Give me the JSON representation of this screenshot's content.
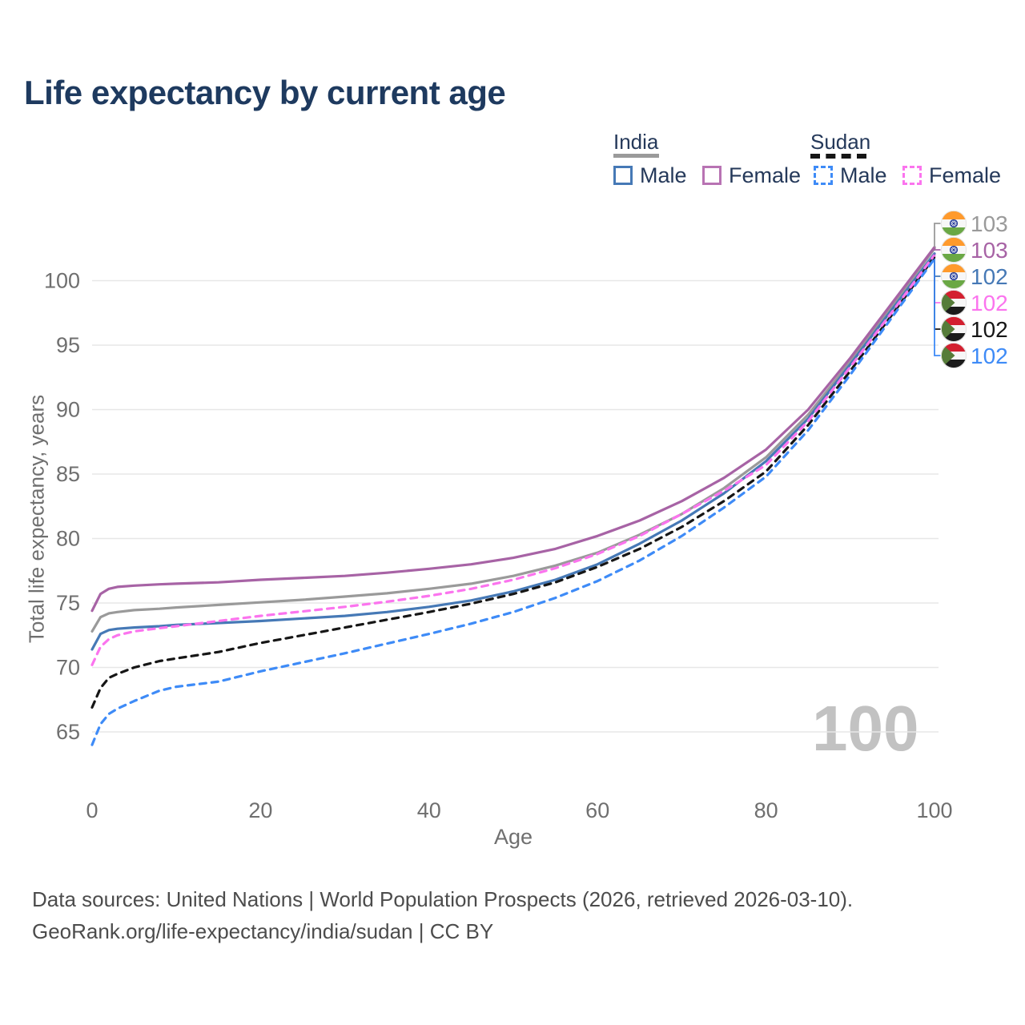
{
  "title": "Life expectancy by current age",
  "legend": {
    "india": {
      "label": "India",
      "male": "Male",
      "female": "Female"
    },
    "sudan": {
      "label": "Sudan",
      "male": "Male",
      "female": "Female"
    }
  },
  "watermark": "100",
  "source_line1": "Data sources: United Nations | World Population Prospects (2026, retrieved 2026-03-10).",
  "source_line2": "GeoRank.org/life-expectancy/india/sudan | CC BY",
  "colors": {
    "india_total": "#9a9a9a",
    "india_female": "#a763a5",
    "india_male": "#4679b6",
    "sudan_female": "#fb74ee",
    "sudan_total": "#161616",
    "sudan_male": "#3e8bf7",
    "grid": "#e7e7e7",
    "axis_text": "#6f6f6f",
    "title_text": "#1e3a5f"
  },
  "chart_data": {
    "type": "line",
    "title": "Life expectancy by current age",
    "xlabel": "Age",
    "ylabel": "Total life expectancy, years",
    "x_ticks": [
      0,
      20,
      40,
      60,
      80,
      100
    ],
    "y_ticks": [
      65,
      70,
      75,
      80,
      85,
      90,
      95,
      100
    ],
    "xlim": [
      0,
      100
    ],
    "ylim": [
      63.5,
      103.5
    ],
    "grid": "horizontal",
    "legend_position": "top-right",
    "x": [
      0,
      1,
      2,
      3,
      5,
      8,
      10,
      15,
      20,
      25,
      30,
      35,
      40,
      45,
      50,
      55,
      60,
      65,
      70,
      75,
      80,
      85,
      90,
      95,
      100
    ],
    "series": [
      {
        "name": "India both sexes",
        "country": "india",
        "sex": "total",
        "color": "#9a9a9a",
        "dash": false,
        "end_label": "103",
        "values": [
          72.8,
          73.9,
          74.2,
          74.3,
          74.45,
          74.55,
          74.65,
          74.85,
          75.05,
          75.25,
          75.5,
          75.75,
          76.1,
          76.5,
          77.1,
          77.9,
          78.9,
          80.3,
          81.9,
          83.9,
          86.3,
          89.6,
          93.7,
          98.0,
          102.5
        ]
      },
      {
        "name": "India female",
        "country": "india",
        "sex": "female",
        "color": "#a763a5",
        "dash": false,
        "end_label": "103",
        "values": [
          74.4,
          75.7,
          76.1,
          76.25,
          76.35,
          76.45,
          76.5,
          76.6,
          76.8,
          76.95,
          77.1,
          77.35,
          77.65,
          78.0,
          78.5,
          79.2,
          80.2,
          81.4,
          82.9,
          84.7,
          86.9,
          90.0,
          94.0,
          98.3,
          102.6
        ]
      },
      {
        "name": "India male",
        "country": "india",
        "sex": "male",
        "color": "#4679b6",
        "dash": false,
        "end_label": "102",
        "values": [
          71.4,
          72.6,
          72.9,
          73.0,
          73.1,
          73.2,
          73.3,
          73.45,
          73.6,
          73.8,
          74.0,
          74.3,
          74.7,
          75.2,
          75.9,
          76.8,
          78.0,
          79.6,
          81.4,
          83.5,
          86.0,
          89.3,
          93.5,
          97.8,
          102.1
        ]
      },
      {
        "name": "Sudan female",
        "country": "sudan",
        "sex": "female",
        "color": "#fb74ee",
        "dash": true,
        "end_label": "102",
        "values": [
          70.2,
          71.6,
          72.2,
          72.5,
          72.8,
          73.05,
          73.2,
          73.6,
          74.0,
          74.35,
          74.7,
          75.1,
          75.55,
          76.1,
          76.8,
          77.7,
          78.8,
          80.2,
          81.9,
          83.7,
          85.7,
          89.1,
          93.3,
          97.6,
          102.0
        ]
      },
      {
        "name": "Sudan both sexes",
        "country": "sudan",
        "sex": "total",
        "color": "#161616",
        "dash": true,
        "end_label": "102",
        "values": [
          66.9,
          68.4,
          69.2,
          69.5,
          70.0,
          70.5,
          70.7,
          71.2,
          71.9,
          72.5,
          73.1,
          73.7,
          74.3,
          74.95,
          75.7,
          76.6,
          77.8,
          79.2,
          80.9,
          82.9,
          85.2,
          88.8,
          93.0,
          97.4,
          101.85
        ]
      },
      {
        "name": "Sudan male",
        "country": "sudan",
        "sex": "male",
        "color": "#3e8bf7",
        "dash": true,
        "end_label": "102",
        "values": [
          64.0,
          65.6,
          66.4,
          66.8,
          67.4,
          68.2,
          68.5,
          68.9,
          69.7,
          70.4,
          71.1,
          71.85,
          72.6,
          73.4,
          74.3,
          75.4,
          76.7,
          78.3,
          80.2,
          82.4,
          84.8,
          88.4,
          92.7,
          97.2,
          101.7
        ]
      }
    ]
  }
}
